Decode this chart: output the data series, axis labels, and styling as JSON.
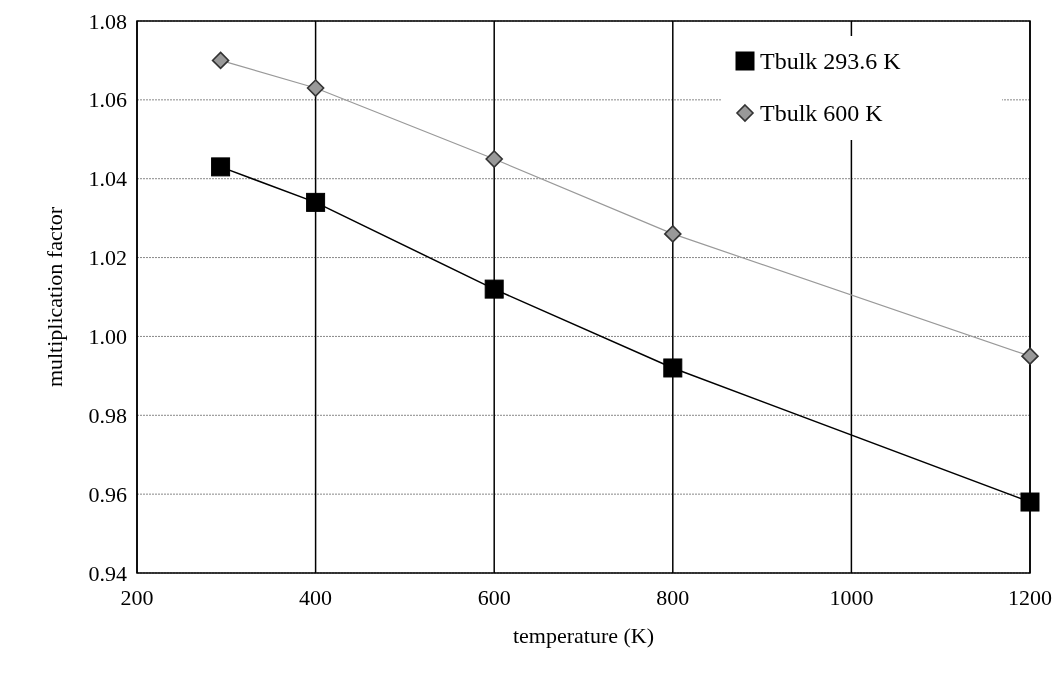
{
  "chart_data": {
    "type": "line",
    "xlabel": "temperature (K)",
    "ylabel": "multiplication factor",
    "xlim": [
      200,
      1200
    ],
    "xticks": [
      200,
      400,
      600,
      800,
      1000,
      1200
    ],
    "ylim": [
      0.94,
      1.08
    ],
    "yticks": [
      {
        "value": 0.94,
        "label": "0.94"
      },
      {
        "value": 0.96,
        "label": "0.96"
      },
      {
        "value": 0.98,
        "label": "0.98"
      },
      {
        "value": 1.0,
        "label": "1.00"
      },
      {
        "value": 1.02,
        "label": "1.02"
      },
      {
        "value": 1.04,
        "label": "1.04"
      },
      {
        "value": 1.06,
        "label": "1.06"
      },
      {
        "value": 1.08,
        "label": "1.08"
      }
    ],
    "grid": true,
    "legend": "top right",
    "line_style": "solid",
    "series": [
      {
        "name": "Tbulk 293.6 K",
        "color": "#000000",
        "marker": "square",
        "x": [
          293.6,
          400,
          600,
          800,
          1200
        ],
        "values": [
          1.043,
          1.034,
          1.012,
          0.992,
          0.958
        ]
      },
      {
        "name": "Tbulk 600 K",
        "color": "#999999",
        "marker": "diamond",
        "x": [
          293.6,
          400,
          600,
          800,
          1200
        ],
        "values": [
          1.07,
          1.063,
          1.045,
          1.026,
          0.995
        ]
      }
    ]
  }
}
